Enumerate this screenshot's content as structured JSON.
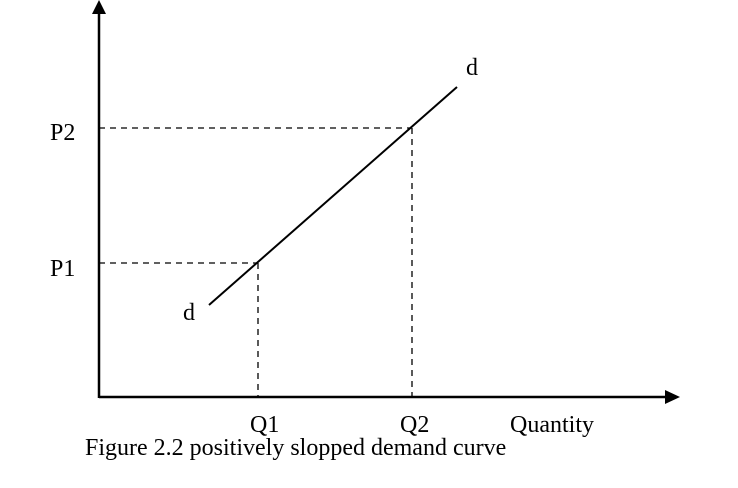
{
  "diagram": {
    "labels": {
      "p2": "P2",
      "p1": "P1",
      "q1": "Q1",
      "q2": "Q2",
      "x_axis": "Quantity",
      "curve_top": "d",
      "curve_bottom": "d"
    },
    "caption": "Figure 2.2 positively slopped demand curve"
  }
}
